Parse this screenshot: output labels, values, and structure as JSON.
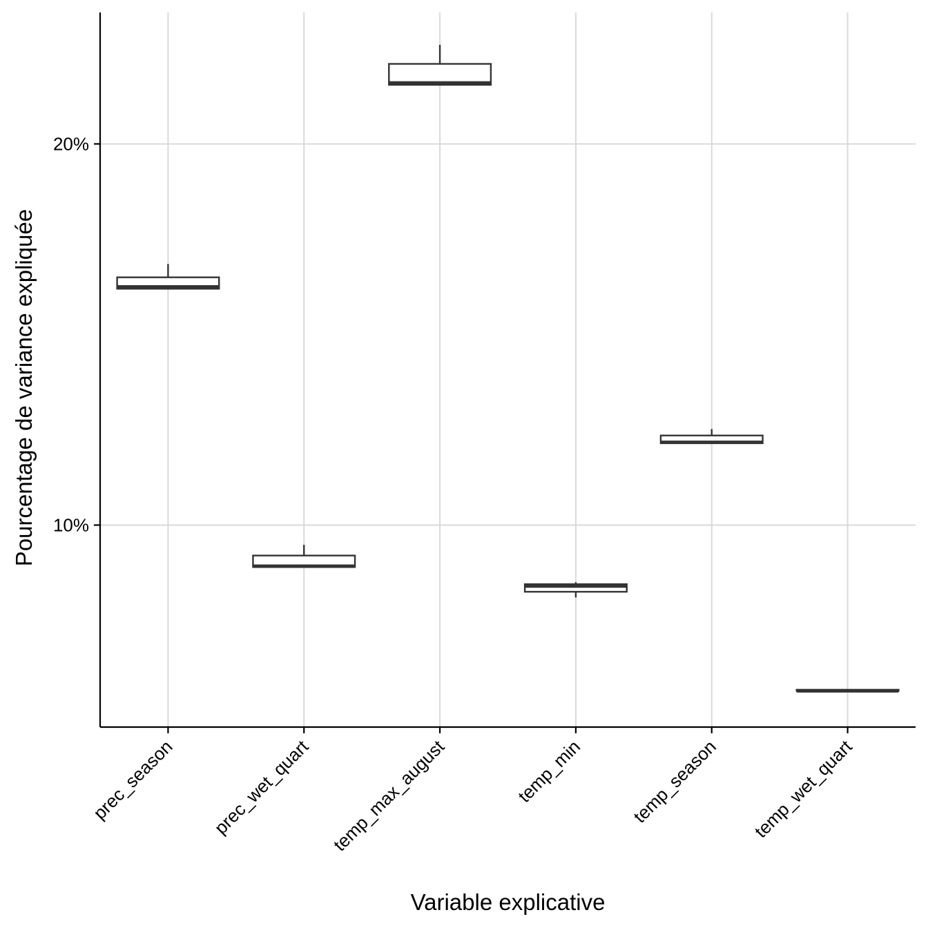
{
  "chart_data": {
    "type": "boxplot",
    "title": "",
    "xlabel": "Variable explicative",
    "ylabel": "Pourcentage de variance expliquée",
    "y_unit": "%",
    "ylim": [
      4.7,
      23.45
    ],
    "y_ticks": [
      10,
      20
    ],
    "y_tick_labels": [
      "10%",
      "20%"
    ],
    "grid": true,
    "categories": [
      "prec_season",
      "prec_wet_quart",
      "temp_max_august",
      "temp_min",
      "temp_season",
      "temp_wet_quart"
    ],
    "boxes": [
      {
        "name": "prec_season",
        "lower_whisker": 16.2,
        "q1": 16.2,
        "median": 16.25,
        "q3": 16.5,
        "upper_whisker": 16.85
      },
      {
        "name": "prec_wet_quart",
        "lower_whisker": 8.9,
        "q1": 8.9,
        "median": 8.92,
        "q3": 9.2,
        "upper_whisker": 9.48
      },
      {
        "name": "temp_max_august",
        "lower_whisker": 21.55,
        "q1": 21.55,
        "median": 21.6,
        "q3": 22.1,
        "upper_whisker": 22.6
      },
      {
        "name": "temp_min",
        "lower_whisker": 8.1,
        "q1": 8.25,
        "median": 8.4,
        "q3": 8.45,
        "upper_whisker": 8.5
      },
      {
        "name": "temp_season",
        "lower_whisker": 12.15,
        "q1": 12.15,
        "median": 12.17,
        "q3": 12.35,
        "upper_whisker": 12.52
      },
      {
        "name": "temp_wet_quart",
        "lower_whisker": 5.65,
        "q1": 5.65,
        "median": 5.65,
        "q3": 5.68,
        "upper_whisker": 5.68
      }
    ]
  }
}
